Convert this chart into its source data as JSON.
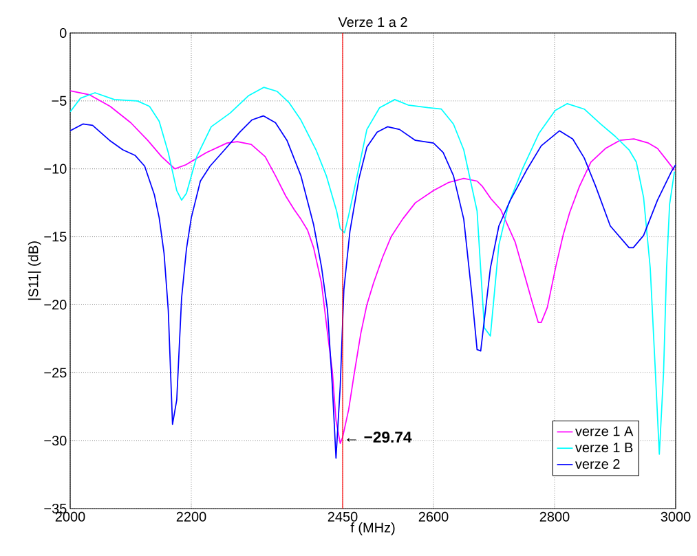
{
  "chart_data": {
    "type": "line",
    "title": "Verze 1 a 2",
    "xlabel": "f (MHz)",
    "ylabel": "|S11| (dB)",
    "x": [
      2000,
      2032,
      2066,
      2100,
      2128,
      2151,
      2168,
      2173,
      2191,
      2225,
      2259,
      2276,
      2299,
      2322,
      2339,
      2356,
      2370,
      2381,
      2392,
      2402,
      2415,
      2425,
      2433,
      2439,
      2446,
      2450,
      2460,
      2469,
      2480,
      2490,
      2501,
      2516,
      2530,
      2549,
      2570,
      2600,
      2625,
      2650,
      2672,
      2681,
      2695,
      2711,
      2735,
      2751,
      2763,
      2773,
      2778,
      2788,
      2802,
      2814,
      2825,
      2841,
      2860,
      2884,
      2908,
      2931,
      2955,
      2970,
      2986,
      2998
    ],
    "series": [
      {
        "name": "verze 1 A",
        "color": "#ff00ff",
        "values": [
          -4.25,
          -4.55,
          -5.4,
          -6.6,
          -7.9,
          -9.1,
          -9.8,
          -10.0,
          -9.7,
          -8.8,
          -8.1,
          -8.0,
          -8.2,
          -9.1,
          -10.5,
          -12.0,
          -13.0,
          -13.7,
          -14.5,
          -15.8,
          -18.4,
          -22.1,
          -24.9,
          -28.5,
          -30.2,
          -29.74,
          -27.7,
          -25.1,
          -22.1,
          -20.0,
          -18.4,
          -16.5,
          -15.0,
          -13.7,
          -12.5,
          -11.6,
          -11.0,
          -10.7,
          -10.9,
          -11.3,
          -12.2,
          -13.0,
          -15.4,
          -17.9,
          -19.8,
          -21.3,
          -21.3,
          -20.2,
          -17.2,
          -14.9,
          -13.2,
          -11.3,
          -9.5,
          -8.5,
          -7.9,
          -7.8,
          -8.1,
          -8.5,
          -9.4,
          -10.1
        ]
      },
      {
        "name": "verze 1 B",
        "color": "#00ffff",
        "x": [
          2000,
          2017,
          2041,
          2073,
          2111,
          2131,
          2147,
          2162,
          2176,
          2184,
          2192,
          2209,
          2233,
          2264,
          2295,
          2320,
          2342,
          2361,
          2381,
          2406,
          2423,
          2440,
          2446,
          2453,
          2460,
          2474,
          2490,
          2511,
          2536,
          2558,
          2591,
          2613,
          2633,
          2650,
          2672,
          2684,
          2694,
          2708,
          2724,
          2747,
          2774,
          2801,
          2821,
          2849,
          2876,
          2900,
          2923,
          2935,
          2947,
          2958,
          2966,
          2973,
          2980,
          2985,
          2990,
          2998
        ],
        "values": [
          -5.8,
          -4.8,
          -4.4,
          -4.9,
          -5.0,
          -5.4,
          -6.5,
          -8.8,
          -11.6,
          -12.3,
          -11.8,
          -9.1,
          -6.9,
          -5.9,
          -4.6,
          -4.0,
          -4.3,
          -5.1,
          -6.4,
          -8.6,
          -10.5,
          -13.1,
          -14.4,
          -14.7,
          -13.4,
          -10.5,
          -7.1,
          -5.5,
          -4.9,
          -5.3,
          -5.5,
          -5.6,
          -6.7,
          -8.6,
          -13.1,
          -21.7,
          -22.3,
          -15.6,
          -12.6,
          -10.0,
          -7.4,
          -5.7,
          -5.2,
          -5.6,
          -6.7,
          -7.6,
          -8.6,
          -9.5,
          -12.1,
          -17.3,
          -24.5,
          -31.0,
          -25.0,
          -17.3,
          -12.6,
          -10.2
        ]
      },
      {
        "name": "verze 2",
        "color": "#0000ff",
        "x": [
          2000,
          2021,
          2037,
          2065,
          2087,
          2107,
          2123,
          2139,
          2147,
          2155,
          2162,
          2169,
          2176,
          2184,
          2192,
          2200,
          2215,
          2231,
          2257,
          2280,
          2300,
          2319,
          2339,
          2358,
          2381,
          2402,
          2415,
          2425,
          2433,
          2439,
          2446,
          2452,
          2462,
          2477,
          2490,
          2507,
          2524,
          2544,
          2570,
          2600,
          2616,
          2633,
          2650,
          2663,
          2672,
          2678,
          2694,
          2708,
          2727,
          2755,
          2778,
          2808,
          2830,
          2849,
          2868,
          2892,
          2923,
          2930,
          2947,
          2970,
          2993,
          3000
        ],
        "values": [
          -7.2,
          -6.7,
          -6.8,
          -7.9,
          -8.6,
          -9.0,
          -9.8,
          -11.9,
          -13.6,
          -16.2,
          -20.4,
          -28.8,
          -27.0,
          -19.5,
          -15.9,
          -13.6,
          -10.9,
          -9.8,
          -8.5,
          -7.3,
          -6.4,
          -6.1,
          -6.6,
          -7.9,
          -10.5,
          -14.1,
          -17.2,
          -20.4,
          -26.0,
          -31.3,
          -26.0,
          -18.9,
          -14.6,
          -10.7,
          -8.4,
          -7.3,
          -6.9,
          -7.1,
          -7.9,
          -8.1,
          -8.8,
          -10.5,
          -13.7,
          -19.1,
          -23.3,
          -23.4,
          -17.3,
          -14.2,
          -12.3,
          -10.0,
          -8.3,
          -7.2,
          -7.8,
          -9.2,
          -11.3,
          -14.2,
          -15.8,
          -15.8,
          -14.9,
          -12.3,
          -10.2,
          -9.7
        ]
      }
    ],
    "xlim": [
      2000,
      3000
    ],
    "ylim": [
      -35,
      0
    ],
    "xticks": [
      2000,
      2200,
      2450,
      2600,
      2800,
      3000
    ],
    "yticks": [
      {
        "value": -35,
        "label": "−35"
      },
      {
        "value": -30,
        "label": "−30"
      },
      {
        "value": -25,
        "label": "−25"
      },
      {
        "value": -20,
        "label": "−20"
      },
      {
        "value": -15,
        "label": "−15"
      },
      {
        "value": -10,
        "label": "−10"
      },
      {
        "value": -5,
        "label": "−5"
      },
      0
    ],
    "ref_lines": [
      {
        "axis": "x",
        "value": 2450,
        "color": "#ff0000"
      }
    ],
    "annotations": [
      {
        "text": "← −29.74",
        "x": 2450,
        "y": -29.74
      }
    ],
    "grid": true,
    "legend": "bottom right",
    "line_style": "solid",
    "marker": "none"
  }
}
